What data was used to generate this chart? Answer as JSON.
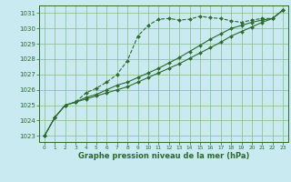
{
  "title": "Graphe pression niveau de la mer (hPa)",
  "bg_color": "#c8eaf0",
  "line_color": "#2d6a2d",
  "grid_color": "#88bb88",
  "ylim": [
    1022.6,
    1031.5
  ],
  "xlim": [
    -0.5,
    23.5
  ],
  "yticks": [
    1023,
    1024,
    1025,
    1026,
    1027,
    1028,
    1029,
    1030,
    1031
  ],
  "xticks": [
    0,
    1,
    2,
    3,
    4,
    5,
    6,
    7,
    8,
    9,
    10,
    11,
    12,
    13,
    14,
    15,
    16,
    17,
    18,
    19,
    20,
    21,
    22,
    23
  ],
  "line1": [
    1023.0,
    1024.2,
    1025.0,
    1025.2,
    1025.8,
    1026.1,
    1026.5,
    1027.0,
    1027.9,
    1029.5,
    1030.2,
    1030.6,
    1030.65,
    1030.55,
    1030.6,
    1030.8,
    1030.7,
    1030.65,
    1030.5,
    1030.4,
    1030.55,
    1030.65,
    1030.65,
    1031.2
  ],
  "line2": [
    1023.0,
    1024.2,
    1025.0,
    1025.2,
    1025.5,
    1025.7,
    1026.0,
    1026.3,
    1026.5,
    1026.8,
    1027.1,
    1027.4,
    1027.75,
    1028.1,
    1028.5,
    1028.9,
    1029.3,
    1029.65,
    1030.0,
    1030.2,
    1030.4,
    1030.55,
    1030.65,
    1031.2
  ],
  "line3": [
    1023.0,
    1024.2,
    1025.0,
    1025.2,
    1025.4,
    1025.6,
    1025.8,
    1026.0,
    1026.2,
    1026.5,
    1026.8,
    1027.1,
    1027.4,
    1027.7,
    1028.05,
    1028.4,
    1028.75,
    1029.1,
    1029.5,
    1029.8,
    1030.1,
    1030.4,
    1030.65,
    1031.2
  ]
}
